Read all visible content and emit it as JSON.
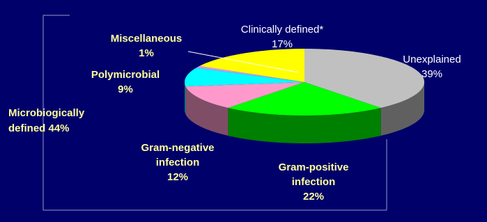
{
  "chart_data": {
    "type": "pie3d",
    "categories": [
      "Unexplained",
      "Gram-positive infection",
      "Gram-negative infection",
      "Polymicrobial",
      "Miscellaneous",
      "Clinically defined*"
    ],
    "values": [
      39,
      22,
      12,
      9,
      1,
      17
    ],
    "value_labels": [
      "39%",
      "22%",
      "12%",
      "9%",
      "1%",
      "17%"
    ],
    "colors": [
      "#c0c0c0",
      "#00ff00",
      "#ff99cc",
      "#00ffff",
      "#cc99ff",
      "#ffff00"
    ],
    "label_colors": [
      "#ffffff",
      "#ffff99",
      "#ffff99",
      "#ffff99",
      "#ffff99",
      "#ffffff"
    ],
    "annotation": "Microbiogically defined 44%"
  }
}
